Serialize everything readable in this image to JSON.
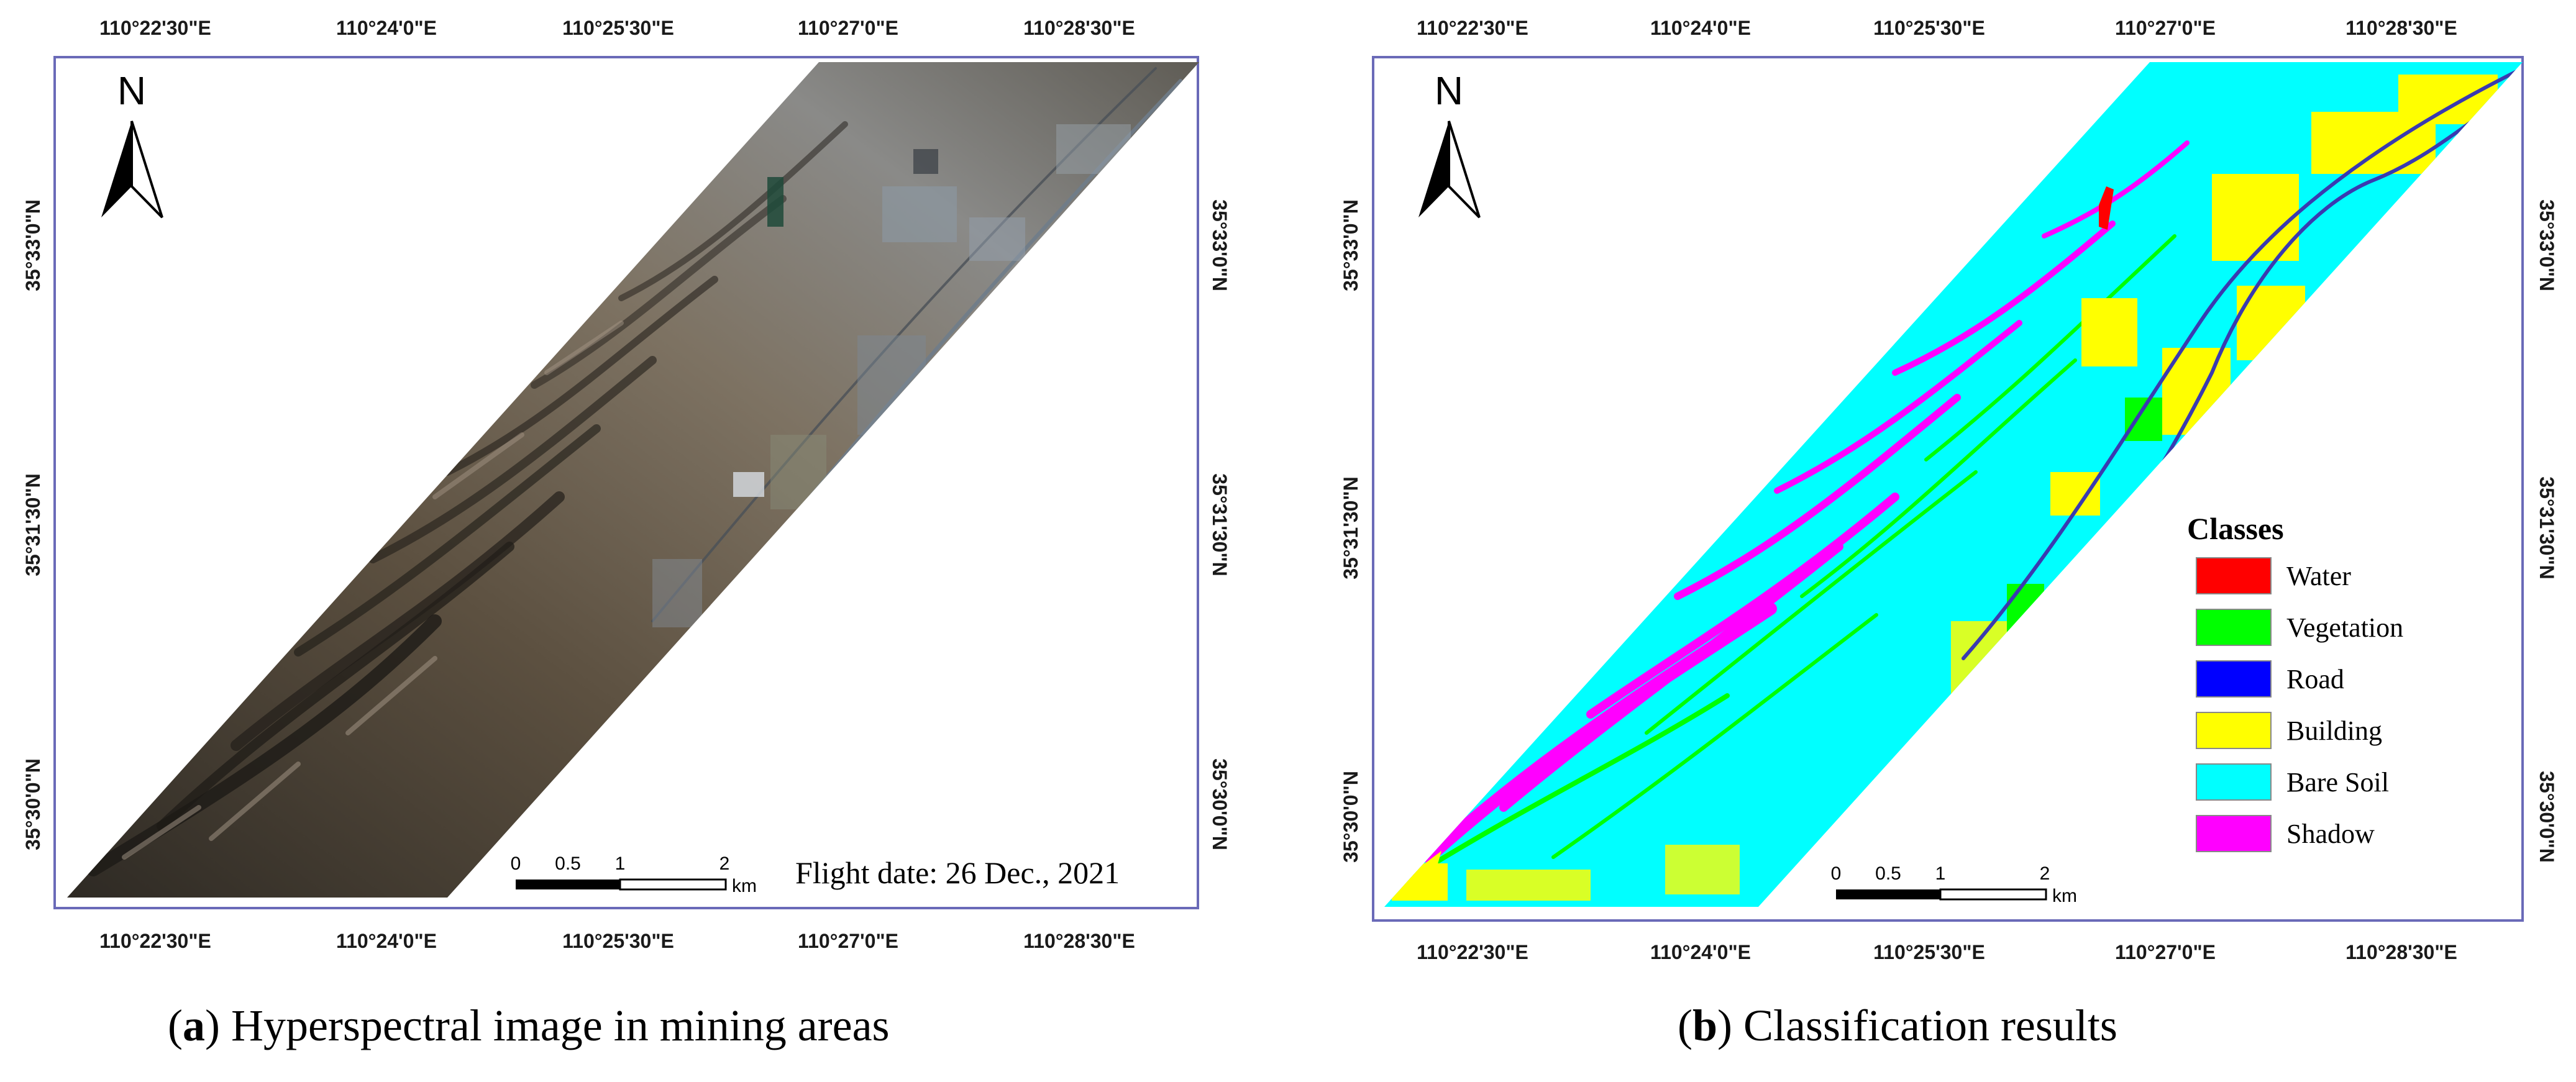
{
  "panel_a": {
    "caption_letter": "a",
    "caption_text": "Hyperspectral image in mining areas",
    "north": "N",
    "lon_labels": [
      "110°22'30\"E",
      "110°24'0\"E",
      "110°25'30\"E",
      "110°27'0\"E",
      "110°28'30\"E"
    ],
    "lat_labels": [
      "35°33'0\"N",
      "35°31'30\"N",
      "35°30'0\"N"
    ],
    "scale_ticks": [
      "0",
      "0.5",
      "1",
      "2"
    ],
    "scale_unit": "km",
    "flight_date": "Flight  date: 26 Dec., 2021"
  },
  "panel_b": {
    "caption_letter": "b",
    "caption_text": "Classification results",
    "north": "N",
    "lon_labels": [
      "110°22'30\"E",
      "110°24'0\"E",
      "110°25'30\"E",
      "110°27'0\"E",
      "110°28'30\"E"
    ],
    "lat_labels": [
      "35°33'0\"N",
      "35°31'30\"N",
      "35°30'0\"N"
    ],
    "scale_ticks": [
      "0",
      "0.5",
      "1",
      "2"
    ],
    "scale_unit": "km",
    "legend": {
      "title": "Classes",
      "items": [
        {
          "label": "Water",
          "color": "#ff0000"
        },
        {
          "label": "Vegetation",
          "color": "#00ff00"
        },
        {
          "label": "Road",
          "color": "#0000ff"
        },
        {
          "label": "Building",
          "color": "#ffff00"
        },
        {
          "label": "Bare Soil",
          "color": "#00ffff"
        },
        {
          "label": "Shadow",
          "color": "#ff00ff"
        }
      ]
    }
  },
  "colors": {
    "frame": "#6a6ab8",
    "road_line": "#3a3ab0",
    "imagery_base": "#6b5d4a",
    "soil": "#00ffff"
  }
}
